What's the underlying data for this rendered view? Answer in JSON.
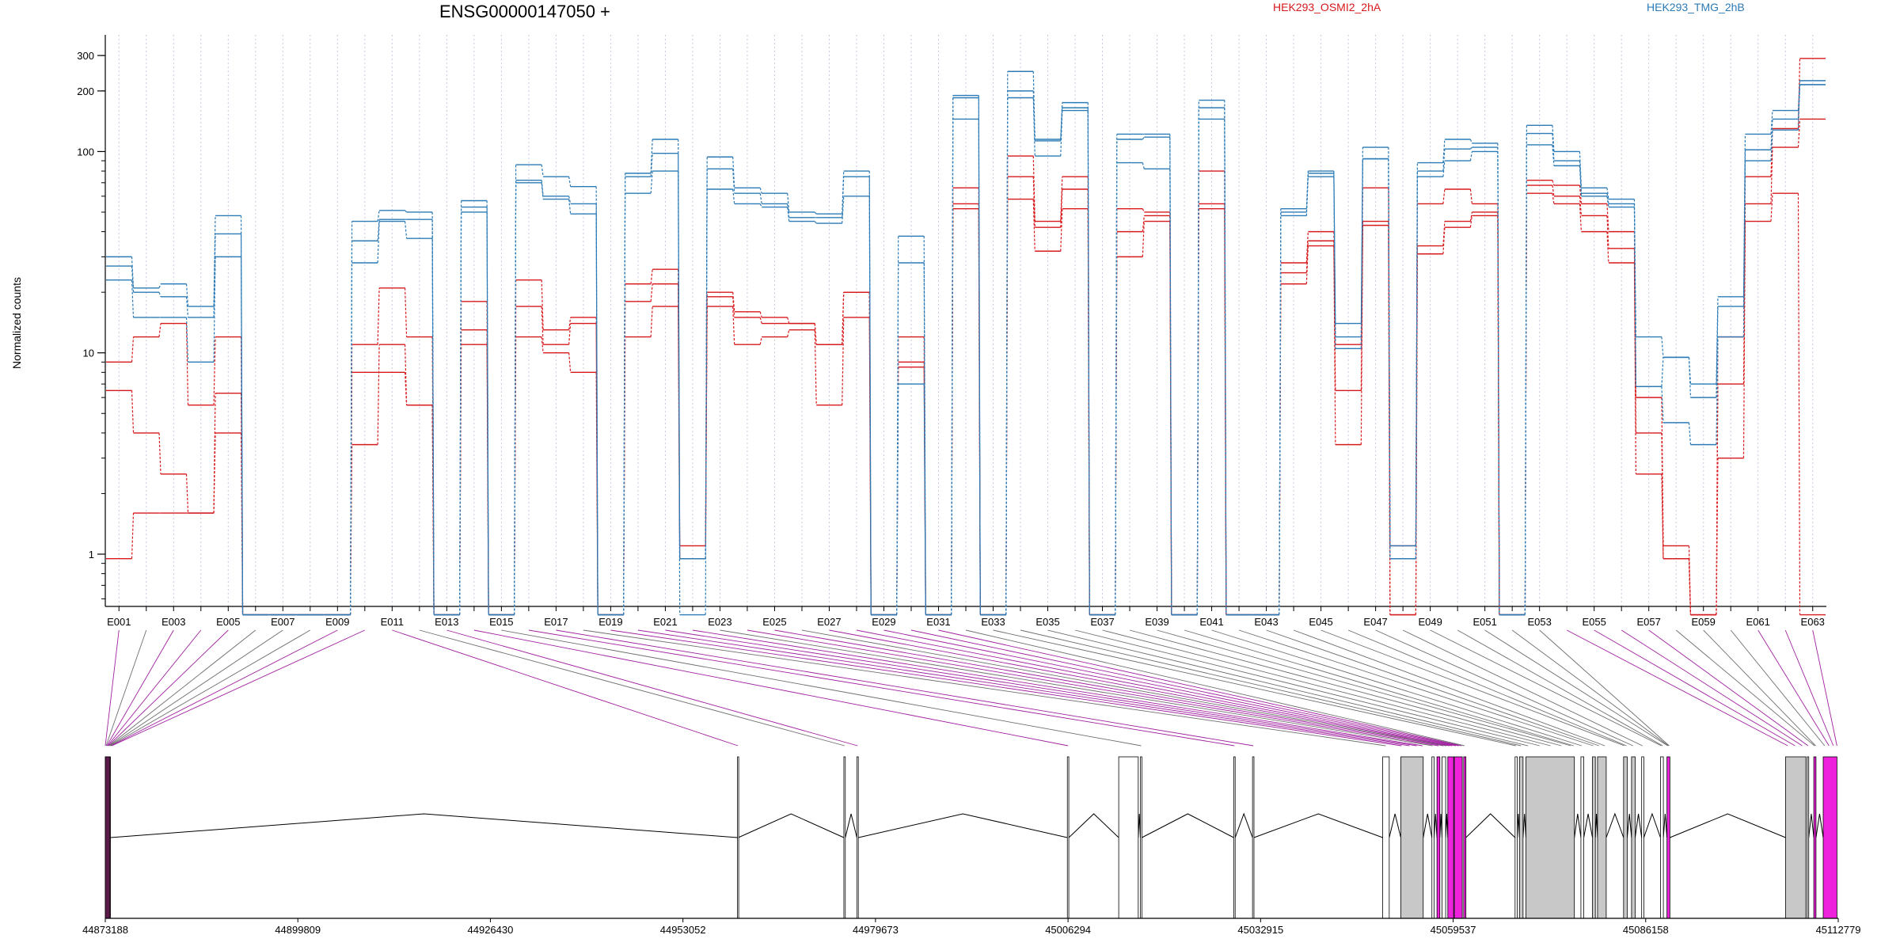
{
  "chart_data": {
    "type": "line",
    "title": "ENSG00000147050 +",
    "ylabel": "Normalized counts",
    "yscale": "log",
    "ylim": [
      0.55,
      380
    ],
    "yticks": [
      "1",
      "10",
      "100",
      "200",
      "300"
    ],
    "ytick_values": [
      1,
      10,
      100,
      200,
      300
    ],
    "legend": [
      {
        "name": "HEK293_OSMI2_2hA",
        "color": "#d7191c"
      },
      {
        "name": "HEK293_TMG_2hB",
        "color": "#2c7bb6"
      }
    ],
    "categories": [
      "E001",
      "E002",
      "E003",
      "E004",
      "E005",
      "E006",
      "E007",
      "E008",
      "E009",
      "E010",
      "E011",
      "E012",
      "E013",
      "E014",
      "E015",
      "E016",
      "E017",
      "E018",
      "E019",
      "E020",
      "E021",
      "E022",
      "E023",
      "E024",
      "E025",
      "E026",
      "E027",
      "E028",
      "E029",
      "E030",
      "E031",
      "E032",
      "E033",
      "E034",
      "E035",
      "E036",
      "E037",
      "E038",
      "E039",
      "E040",
      "E041",
      "E042",
      "E043",
      "E044",
      "E045",
      "E046",
      "E047",
      "E048",
      "E049",
      "E050",
      "E051",
      "E052",
      "E053",
      "E054",
      "E055",
      "E056",
      "E057",
      "E058",
      "E059",
      "E060",
      "E061",
      "E062",
      "E063"
    ],
    "xtick_labels": [
      "E001",
      "E003",
      "E005",
      "E007",
      "E009",
      "E011",
      "E013",
      "E015",
      "E017",
      "E019",
      "E021",
      "E023",
      "E025",
      "E027",
      "E029",
      "E031",
      "E033",
      "E035",
      "E037",
      "E039",
      "E041",
      "E043",
      "E045",
      "E047",
      "E049",
      "E051",
      "E053",
      "E055",
      "E057",
      "E059",
      "E061",
      "E063"
    ],
    "series": [
      {
        "group": "HEK293_OSMI2_2hA",
        "color": "#d7191c",
        "values": [
          9,
          12,
          14,
          5.5,
          12,
          0.5,
          0.5,
          0.5,
          0.5,
          11,
          21,
          12,
          0.5,
          18,
          0.5,
          23,
          13,
          15,
          0.5,
          22,
          26,
          1.1,
          20,
          16,
          15,
          14,
          11,
          20,
          0.5,
          12,
          0.5,
          66,
          0.5,
          95,
          45,
          75,
          0.5,
          52,
          50,
          0.5,
          80,
          0.5,
          0.5,
          28,
          40,
          11,
          66,
          1.1,
          55,
          65,
          55,
          0.5,
          72,
          68,
          55,
          40,
          6,
          1.1,
          0.5,
          12,
          75,
          130,
          290
        ]
      },
      {
        "group": "HEK293_OSMI2_2hA",
        "color": "#d7191c",
        "values": [
          6.5,
          4,
          2.5,
          1.6,
          6.3,
          0.5,
          0.5,
          0.5,
          0.5,
          8,
          8,
          5.5,
          0.5,
          13,
          0.5,
          17,
          11,
          14,
          0.5,
          18,
          22,
          0.95,
          19,
          15,
          14,
          14,
          11,
          20,
          0.5,
          9,
          0.5,
          55,
          0.5,
          75,
          42,
          65,
          0.5,
          40,
          48,
          0.5,
          55,
          0.5,
          0.5,
          25,
          36,
          6.5,
          45,
          0.5,
          34,
          45,
          50,
          0.5,
          68,
          60,
          48,
          33,
          4,
          0.95,
          0.5,
          7,
          55,
          105,
          145
        ]
      },
      {
        "group": "HEK293_OSMI2_2hA",
        "color": "#d7191c",
        "values": [
          0.95,
          1.6,
          1.6,
          1.6,
          4,
          0.5,
          0.5,
          0.5,
          0.5,
          3.5,
          11,
          5.5,
          0.5,
          11,
          0.5,
          12,
          10,
          8,
          0.5,
          12,
          17,
          0.95,
          17,
          11,
          12,
          13,
          5.5,
          15,
          0.5,
          8.5,
          0.5,
          52,
          0.5,
          58,
          32,
          52,
          0.5,
          30,
          45,
          0.5,
          52,
          0.5,
          0.5,
          22,
          34,
          3.5,
          43,
          0.5,
          31,
          42,
          48,
          0.5,
          62,
          55,
          40,
          28,
          2.5,
          0.95,
          0.5,
          3,
          45,
          62,
          0.5
        ]
      },
      {
        "group": "HEK293_TMG_2hB",
        "color": "#2c7bb6",
        "values": [
          30,
          21,
          22,
          17,
          48,
          0.5,
          0.5,
          0.5,
          0.5,
          45,
          51,
          50,
          0.5,
          57,
          0.5,
          86,
          75,
          67,
          0.5,
          78,
          115,
          0.5,
          94,
          66,
          62,
          50,
          49,
          80,
          0.5,
          38,
          0.5,
          190,
          0.5,
          250,
          115,
          175,
          0.5,
          122,
          122,
          0.5,
          180,
          0.5,
          0.5,
          52,
          80,
          14,
          105,
          1.1,
          88,
          115,
          110,
          0.5,
          135,
          100,
          66,
          58,
          12,
          9.5,
          7,
          19,
          122,
          160,
          225
        ]
      },
      {
        "group": "HEK293_TMG_2hB",
        "color": "#2c7bb6",
        "values": [
          27,
          20,
          19,
          15,
          39,
          0.5,
          0.5,
          0.5,
          0.5,
          36,
          46,
          46,
          0.5,
          53,
          0.5,
          72,
          60,
          55,
          0.5,
          75,
          98,
          0.95,
          82,
          62,
          55,
          47,
          47,
          75,
          0.5,
          28,
          0.5,
          185,
          0.5,
          200,
          113,
          165,
          0.5,
          115,
          118,
          0.5,
          165,
          0.5,
          0.5,
          50,
          78,
          12,
          92,
          0.95,
          80,
          103,
          105,
          0.5,
          123,
          90,
          62,
          55,
          6.8,
          9.5,
          6,
          17,
          102,
          145,
          215
        ]
      },
      {
        "group": "HEK293_TMG_2hB",
        "color": "#2c7bb6",
        "values": [
          23,
          15,
          15,
          9,
          30,
          0.5,
          0.5,
          0.5,
          0.5,
          28,
          45,
          37,
          0.5,
          50,
          0.5,
          70,
          58,
          49,
          0.5,
          62,
          80,
          0.95,
          65,
          55,
          53,
          45,
          44,
          60,
          0.5,
          7,
          0.5,
          145,
          0.5,
          185,
          95,
          160,
          0.5,
          88,
          82,
          0.5,
          145,
          0.5,
          0.5,
          48,
          75,
          10.5,
          92,
          0.95,
          75,
          90,
          100,
          0.5,
          108,
          85,
          60,
          53,
          6.8,
          4.5,
          3.5,
          12,
          90,
          128,
          215
        ]
      }
    ],
    "genomic_axis": {
      "tick_labels": [
        "44873188",
        "44899809",
        "44926430",
        "44953052",
        "44979673",
        "45006294",
        "45032915",
        "45059537",
        "45086158",
        "45112779"
      ]
    },
    "gene_model": {
      "intron_color": "#000000",
      "exon_fill": "#ffffff",
      "exon_gray": "#c8c8c8",
      "exon_magenta": "#ee22dd",
      "connector_magenta": "#a020a0",
      "connector_gray": "#6e6e6e"
    }
  }
}
